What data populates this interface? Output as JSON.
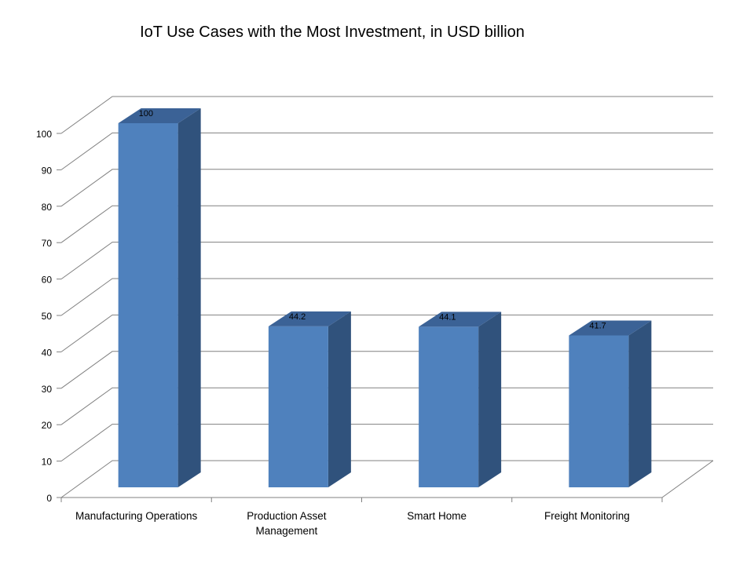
{
  "chart_data": {
    "type": "bar",
    "title": "IoT Use Cases with the Most Investment, in USD billion",
    "categories": [
      "Manufacturing Operations",
      "Production Asset Management",
      "Smart Home",
      "Freight Monitoring"
    ],
    "category_lines": [
      [
        "Manufacturing Operations"
      ],
      [
        "Production Asset",
        "Management"
      ],
      [
        "Smart Home"
      ],
      [
        "Freight Monitoring"
      ]
    ],
    "values": [
      100,
      44.2,
      44.1,
      41.7
    ],
    "data_labels": [
      "100",
      "44.2",
      "44.1",
      "41.7"
    ],
    "ylim": [
      0,
      100
    ],
    "yticks": [
      0,
      10,
      20,
      30,
      40,
      50,
      60,
      70,
      80,
      90,
      100
    ],
    "grid": true,
    "style": "3d-column",
    "colors": {
      "bar_front": "#4F81BD",
      "bar_side": "#30527C",
      "bar_top": "#3B6296",
      "grid": "#808080"
    }
  }
}
